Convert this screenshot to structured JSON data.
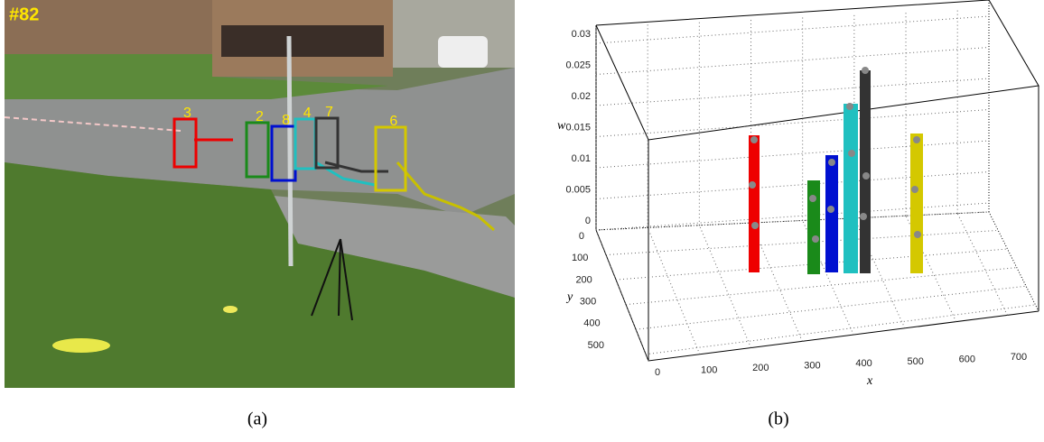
{
  "figure": {
    "panel_a": {
      "frame_label": "#82",
      "track_labels": [
        "3",
        "2",
        "8",
        "4",
        "7",
        "6"
      ],
      "caption": "(a)"
    },
    "panel_b": {
      "w_label": "w",
      "x_label": "x",
      "y_label": "y",
      "w_ticks": [
        0,
        0.005,
        0.01,
        0.015,
        0.02,
        0.025,
        0.03
      ],
      "x_ticks": [
        0,
        100,
        200,
        300,
        400,
        500,
        600,
        700
      ],
      "y_ticks": [
        0,
        100,
        200,
        300,
        400,
        500
      ],
      "caption": "(b)"
    }
  }
}
